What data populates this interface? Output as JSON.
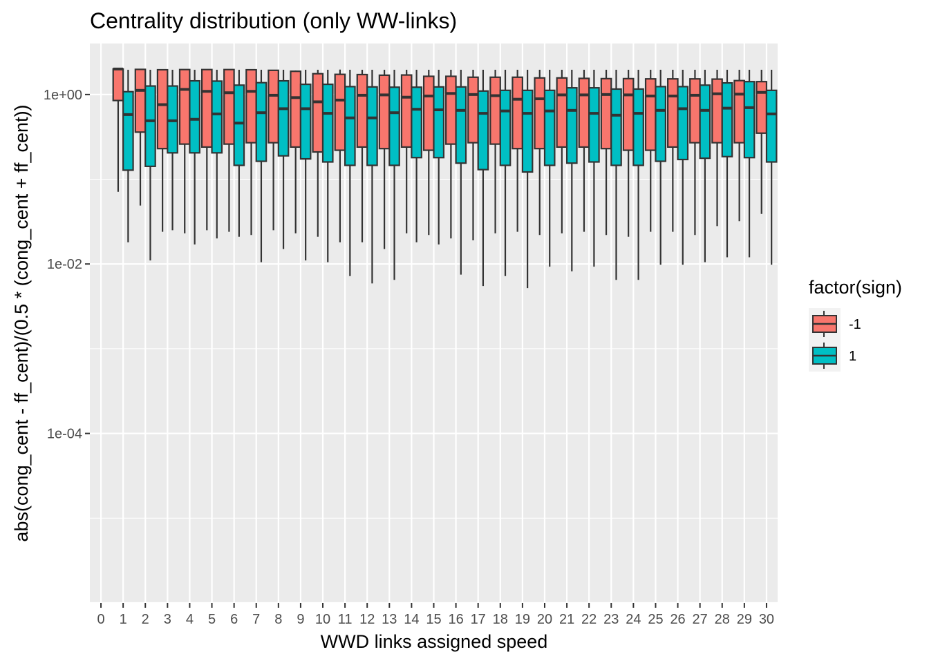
{
  "chart_data": {
    "type": "boxplot",
    "title": "Centrality distribution (only WW-links)",
    "xlabel": "WWD links assigned speed",
    "ylabel": "abs(cong_cent - ff_cent)/(0.5 * (cong_cent + ff_cent))",
    "y_scale": "log10",
    "ylim": [
      1e-06,
      4
    ],
    "y_ticks": [
      {
        "value": 1,
        "label": "1e+00"
      },
      {
        "value": 0.01,
        "label": "1e-02"
      },
      {
        "value": 0.0001,
        "label": "1e-04"
      }
    ],
    "categories": [
      "0",
      "1",
      "2",
      "3",
      "4",
      "5",
      "6",
      "7",
      "8",
      "9",
      "10",
      "11",
      "12",
      "13",
      "14",
      "15",
      "16",
      "17",
      "18",
      "19",
      "20",
      "21",
      "22",
      "23",
      "24",
      "25",
      "26",
      "27",
      "28",
      "29",
      "30"
    ],
    "legend": {
      "title": "factor(sign)",
      "position": "right",
      "entries": [
        {
          "label": "-1",
          "color": "#F8766D"
        },
        {
          "label": "1",
          "color": "#00BFC4"
        }
      ]
    },
    "grid": true,
    "series": [
      {
        "name": "-1",
        "color": "#F8766D",
        "boxes": [
          {
            "x": "1",
            "lower": 0.071,
            "q1": 0.85,
            "median": 2.0,
            "q3": 2.0,
            "upper": 2.0
          },
          {
            "x": "2",
            "lower": 0.049,
            "q1": 0.36,
            "median": 1.12,
            "q3": 1.98,
            "upper": 1.98
          },
          {
            "x": "3",
            "lower": 0.024,
            "q1": 0.23,
            "median": 0.76,
            "q3": 1.96,
            "upper": 1.96
          },
          {
            "x": "4",
            "lower": 0.023,
            "q1": 0.26,
            "median": 1.15,
            "q3": 1.97,
            "upper": 1.97
          },
          {
            "x": "5",
            "lower": 0.025,
            "q1": 0.24,
            "median": 1.09,
            "q3": 1.97,
            "upper": 1.97
          },
          {
            "x": "6",
            "lower": 0.024,
            "q1": 0.26,
            "median": 1.05,
            "q3": 1.97,
            "upper": 1.97
          },
          {
            "x": "7",
            "lower": 0.022,
            "q1": 0.27,
            "median": 1.09,
            "q3": 1.96,
            "upper": 1.96
          },
          {
            "x": "8",
            "lower": 0.025,
            "q1": 0.27,
            "median": 0.98,
            "q3": 1.93,
            "upper": 1.93
          },
          {
            "x": "9",
            "lower": 0.023,
            "q1": 0.24,
            "median": 0.92,
            "q3": 1.88,
            "upper": 1.92
          },
          {
            "x": "10",
            "lower": 0.021,
            "q1": 0.21,
            "median": 0.82,
            "q3": 1.76,
            "upper": 1.96
          },
          {
            "x": "11",
            "lower": 0.018,
            "q1": 0.22,
            "median": 0.86,
            "q3": 1.73,
            "upper": 1.97
          },
          {
            "x": "12",
            "lower": 0.018,
            "q1": 0.24,
            "median": 0.98,
            "q3": 1.72,
            "upper": 1.96
          },
          {
            "x": "13",
            "lower": 0.015,
            "q1": 0.23,
            "median": 0.99,
            "q3": 1.69,
            "upper": 1.96
          },
          {
            "x": "14",
            "lower": 0.023,
            "q1": 0.24,
            "median": 0.93,
            "q3": 1.7,
            "upper": 1.96
          },
          {
            "x": "15",
            "lower": 0.022,
            "q1": 0.22,
            "median": 0.96,
            "q3": 1.64,
            "upper": 1.96
          },
          {
            "x": "16",
            "lower": 0.02,
            "q1": 0.26,
            "median": 1.03,
            "q3": 1.64,
            "upper": 1.96
          },
          {
            "x": "17",
            "lower": 0.019,
            "q1": 0.27,
            "median": 1.0,
            "q3": 1.6,
            "upper": 1.96
          },
          {
            "x": "18",
            "lower": 0.023,
            "q1": 0.26,
            "median": 0.97,
            "q3": 1.6,
            "upper": 1.96
          },
          {
            "x": "19",
            "lower": 0.024,
            "q1": 0.23,
            "median": 0.88,
            "q3": 1.6,
            "upper": 1.96
          },
          {
            "x": "20",
            "lower": 0.022,
            "q1": 0.23,
            "median": 0.89,
            "q3": 1.57,
            "upper": 1.96
          },
          {
            "x": "21",
            "lower": 0.023,
            "q1": 0.24,
            "median": 0.99,
            "q3": 1.57,
            "upper": 1.96
          },
          {
            "x": "22",
            "lower": 0.024,
            "q1": 0.24,
            "median": 0.99,
            "q3": 1.55,
            "upper": 1.96
          },
          {
            "x": "23",
            "lower": 0.022,
            "q1": 0.23,
            "median": 1.0,
            "q3": 1.54,
            "upper": 1.96
          },
          {
            "x": "24",
            "lower": 0.021,
            "q1": 0.22,
            "median": 0.99,
            "q3": 1.54,
            "upper": 1.96
          },
          {
            "x": "25",
            "lower": 0.024,
            "q1": 0.22,
            "median": 0.96,
            "q3": 1.53,
            "upper": 1.96
          },
          {
            "x": "26",
            "lower": 0.024,
            "q1": 0.24,
            "median": 0.96,
            "q3": 1.53,
            "upper": 1.96
          },
          {
            "x": "27",
            "lower": 0.022,
            "q1": 0.27,
            "median": 0.98,
            "q3": 1.53,
            "upper": 1.96
          },
          {
            "x": "28",
            "lower": 0.028,
            "q1": 0.27,
            "median": 1.02,
            "q3": 1.52,
            "upper": 1.96
          },
          {
            "x": "29",
            "lower": 0.032,
            "q1": 0.27,
            "median": 1.01,
            "q3": 1.46,
            "upper": 1.96
          },
          {
            "x": "30",
            "lower": 0.039,
            "q1": 0.35,
            "median": 1.06,
            "q3": 1.42,
            "upper": 1.96
          }
        ]
      },
      {
        "name": "1",
        "color": "#00BFC4",
        "boxes": [
          {
            "x": "1",
            "lower": 0.018,
            "q1": 0.128,
            "median": 0.58,
            "q3": 1.08,
            "upper": 1.96
          },
          {
            "x": "2",
            "lower": 0.011,
            "q1": 0.142,
            "median": 0.49,
            "q3": 1.26,
            "upper": 1.96
          },
          {
            "x": "3",
            "lower": 0.025,
            "q1": 0.205,
            "median": 0.49,
            "q3": 1.26,
            "upper": 1.96
          },
          {
            "x": "4",
            "lower": 0.017,
            "q1": 0.205,
            "median": 0.51,
            "q3": 1.45,
            "upper": 1.96
          },
          {
            "x": "5",
            "lower": 0.02,
            "q1": 0.205,
            "median": 0.59,
            "q3": 1.44,
            "upper": 1.96
          },
          {
            "x": "6",
            "lower": 0.021,
            "q1": 0.146,
            "median": 0.46,
            "q3": 1.29,
            "upper": 1.96
          },
          {
            "x": "7",
            "lower": 0.0105,
            "q1": 0.163,
            "median": 0.61,
            "q3": 1.38,
            "upper": 1.96
          },
          {
            "x": "8",
            "lower": 0.015,
            "q1": 0.189,
            "median": 0.68,
            "q3": 1.45,
            "upper": 1.96
          },
          {
            "x": "9",
            "lower": 0.011,
            "q1": 0.174,
            "median": 0.68,
            "q3": 1.32,
            "upper": 1.96
          },
          {
            "x": "10",
            "lower": 0.0105,
            "q1": 0.16,
            "median": 0.6,
            "q3": 1.32,
            "upper": 1.96
          },
          {
            "x": "11",
            "lower": 0.0072,
            "q1": 0.146,
            "median": 0.53,
            "q3": 1.24,
            "upper": 1.96
          },
          {
            "x": "12",
            "lower": 0.0059,
            "q1": 0.146,
            "median": 0.53,
            "q3": 1.23,
            "upper": 1.96
          },
          {
            "x": "13",
            "lower": 0.0065,
            "q1": 0.146,
            "median": 0.61,
            "q3": 1.22,
            "upper": 1.96
          },
          {
            "x": "14",
            "lower": 0.018,
            "q1": 0.18,
            "median": 0.67,
            "q3": 1.22,
            "upper": 1.96
          },
          {
            "x": "15",
            "lower": 0.017,
            "q1": 0.18,
            "median": 0.66,
            "q3": 1.23,
            "upper": 1.96
          },
          {
            "x": "16",
            "lower": 0.0075,
            "q1": 0.155,
            "median": 0.65,
            "q3": 1.23,
            "upper": 1.96
          },
          {
            "x": "17",
            "lower": 0.0055,
            "q1": 0.13,
            "median": 0.6,
            "q3": 1.1,
            "upper": 1.96
          },
          {
            "x": "18",
            "lower": 0.0072,
            "q1": 0.146,
            "median": 0.64,
            "q3": 1.12,
            "upper": 1.96
          },
          {
            "x": "19",
            "lower": 0.0052,
            "q1": 0.122,
            "median": 0.6,
            "q3": 1.12,
            "upper": 1.96
          },
          {
            "x": "20",
            "lower": 0.0093,
            "q1": 0.146,
            "median": 0.64,
            "q3": 1.12,
            "upper": 1.96
          },
          {
            "x": "21",
            "lower": 0.0082,
            "q1": 0.155,
            "median": 0.65,
            "q3": 1.2,
            "upper": 1.96
          },
          {
            "x": "22",
            "lower": 0.0093,
            "q1": 0.16,
            "median": 0.6,
            "q3": 1.2,
            "upper": 1.96
          },
          {
            "x": "23",
            "lower": 0.0065,
            "q1": 0.146,
            "median": 0.57,
            "q3": 1.16,
            "upper": 1.96
          },
          {
            "x": "24",
            "lower": 0.0065,
            "q1": 0.146,
            "median": 0.6,
            "q3": 1.16,
            "upper": 1.96
          },
          {
            "x": "25",
            "lower": 0.0098,
            "q1": 0.163,
            "median": 0.65,
            "q3": 1.24,
            "upper": 1.96
          },
          {
            "x": "26",
            "lower": 0.0098,
            "q1": 0.171,
            "median": 0.68,
            "q3": 1.24,
            "upper": 1.96
          },
          {
            "x": "27",
            "lower": 0.0105,
            "q1": 0.177,
            "median": 0.65,
            "q3": 1.29,
            "upper": 1.96
          },
          {
            "x": "28",
            "lower": 0.012,
            "q1": 0.185,
            "median": 0.69,
            "q3": 1.37,
            "upper": 1.96
          },
          {
            "x": "29",
            "lower": 0.012,
            "q1": 0.18,
            "median": 0.7,
            "q3": 1.42,
            "upper": 1.96
          },
          {
            "x": "30",
            "lower": 0.0098,
            "q1": 0.16,
            "median": 0.59,
            "q3": 1.12,
            "upper": 1.96
          }
        ]
      }
    ]
  }
}
